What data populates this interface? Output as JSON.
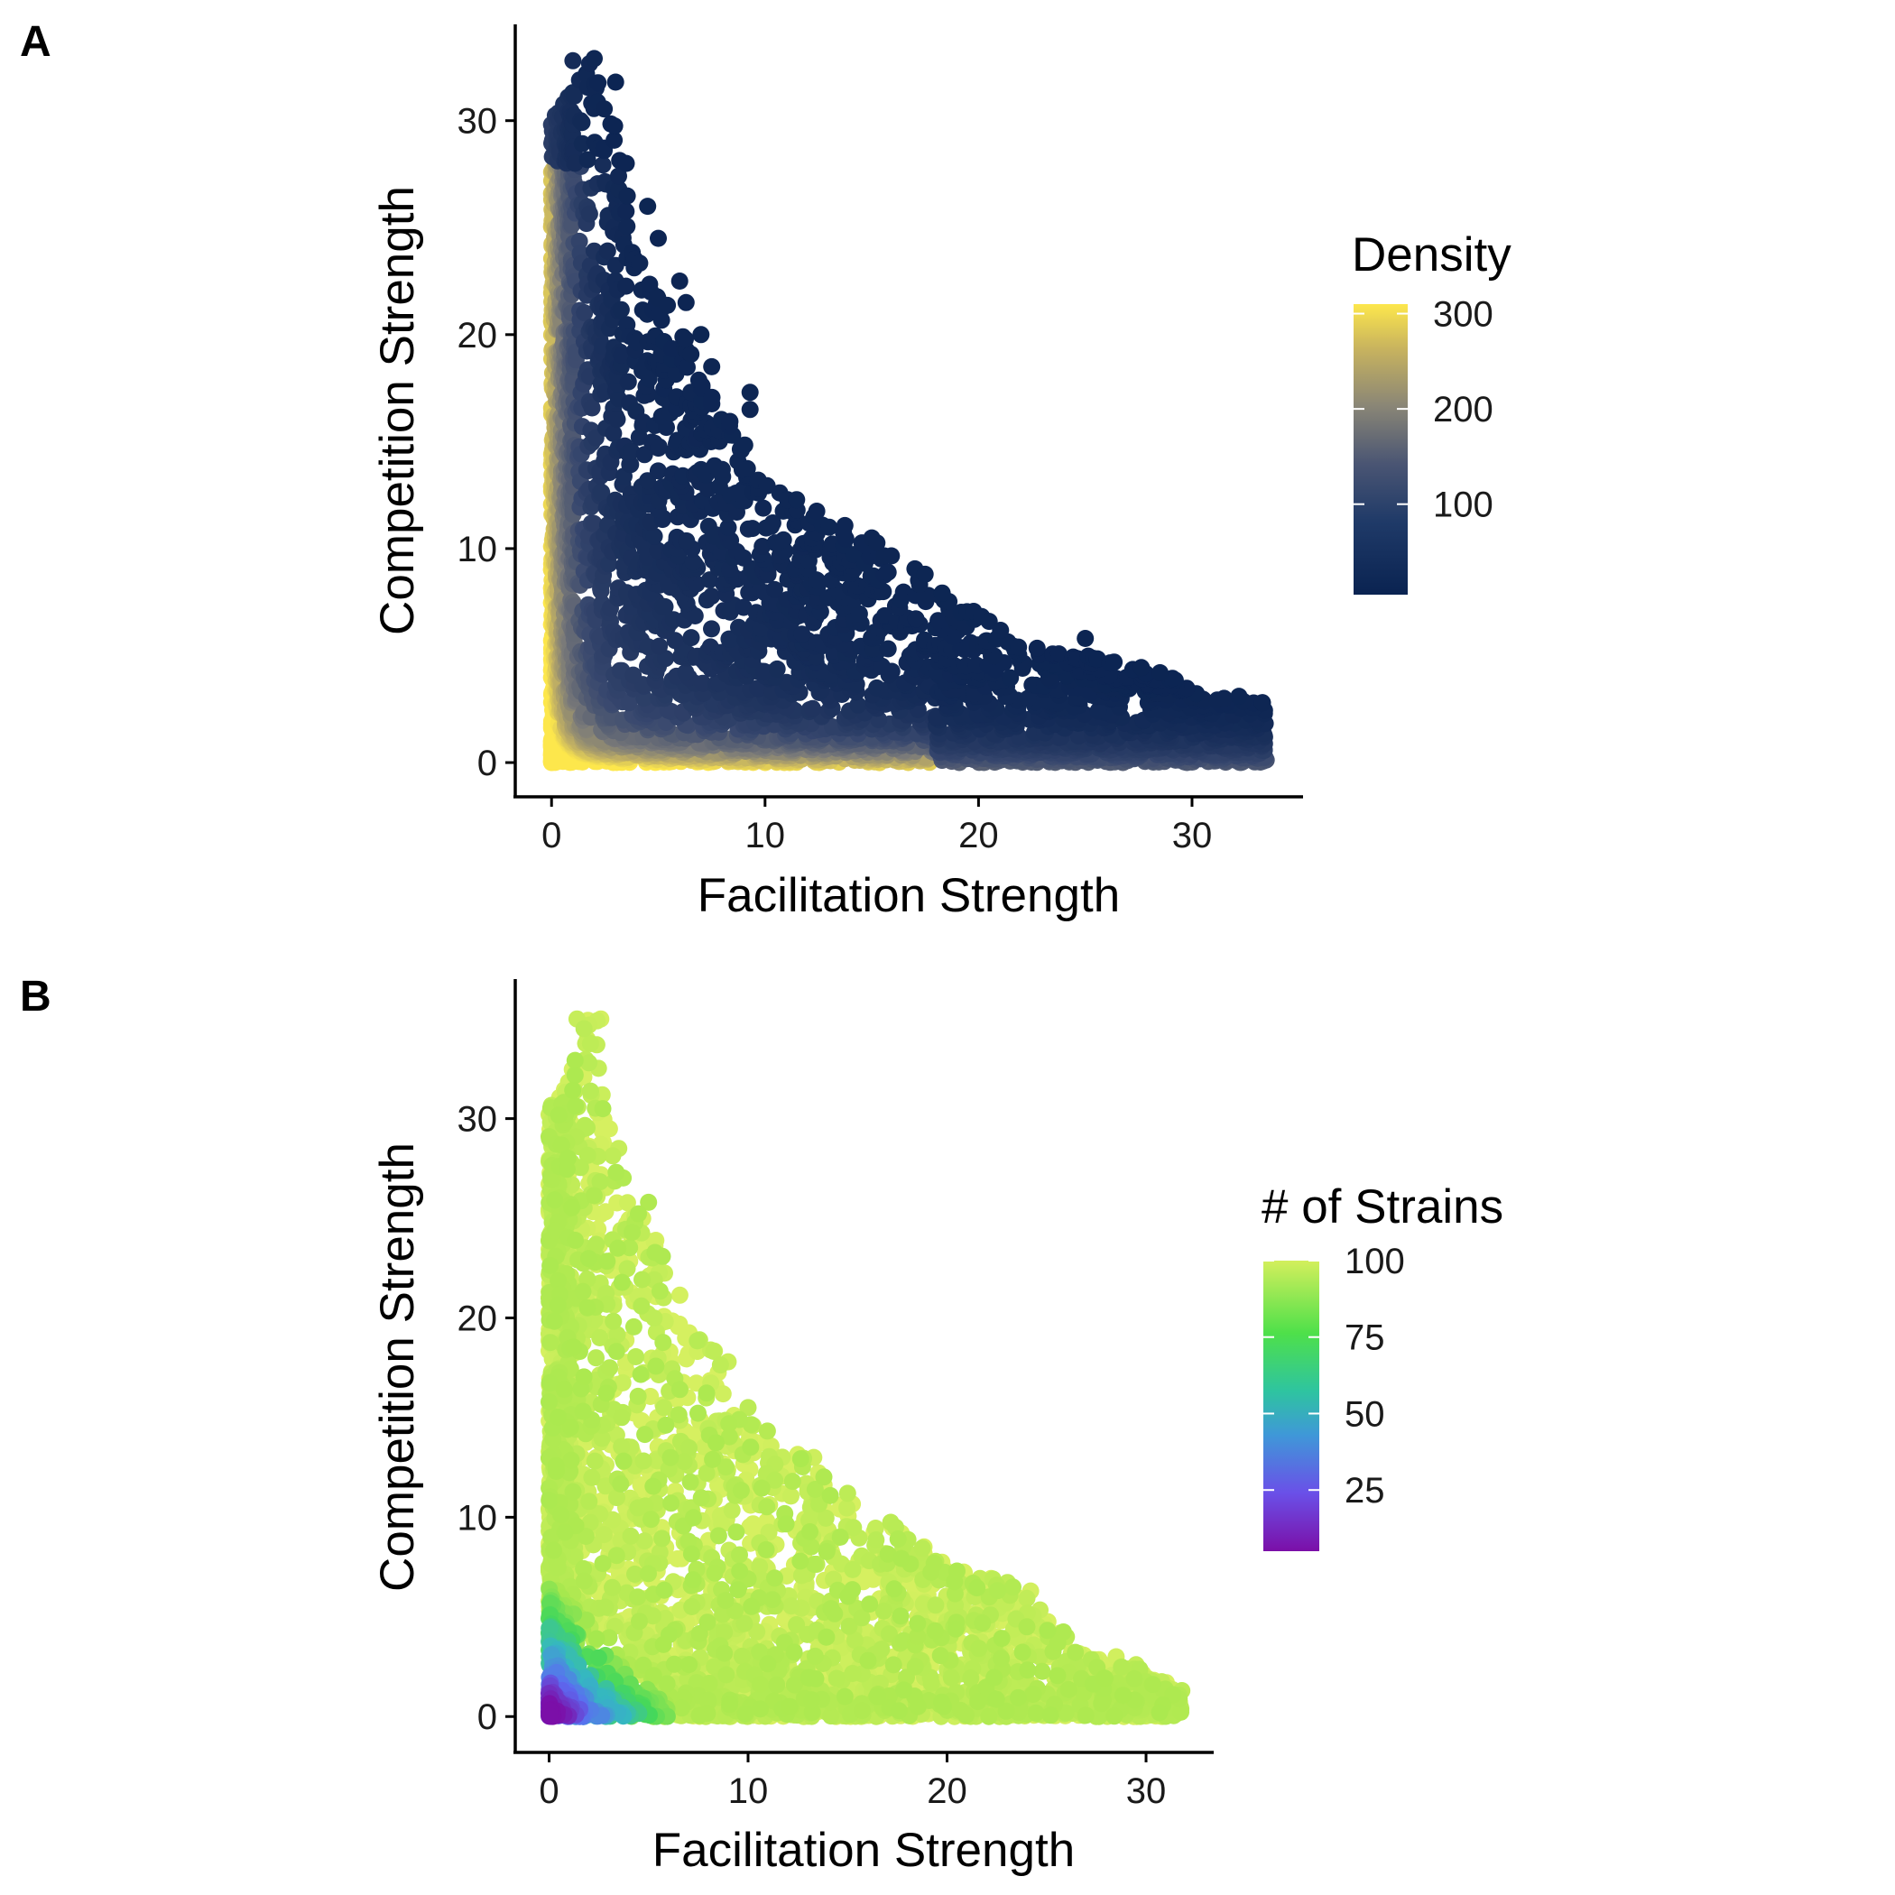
{
  "panels": [
    {
      "id": "A",
      "letter": "A"
    },
    {
      "id": "B",
      "letter": "B"
    }
  ],
  "chart_data": [
    {
      "type": "scatter",
      "panel": "A",
      "xlabel": "Facilitation Strength",
      "ylabel": "Competition Strength",
      "xlim": [
        -1.7,
        35.2
      ],
      "ylim": [
        -1.6,
        34.5
      ],
      "x_ticks": [
        0,
        10,
        20,
        30
      ],
      "y_ticks": [
        0,
        10,
        20,
        30
      ],
      "grid": false,
      "legend": {
        "title": "Density",
        "placement": "right",
        "range": [
          5,
          310
        ],
        "ticks": [
          100,
          200,
          300
        ],
        "colors": [
          "#0a2351",
          "#37476e",
          "#7a7a79",
          "#bfae64",
          "#fde74c"
        ]
      },
      "point_cloud": {
        "description_values": {
          "x_range": [
            0,
            33.5
          ],
          "y_range": [
            0,
            33
          ],
          "boundary_upper": [
            [
              0,
              30
            ],
            [
              1,
              31.5
            ],
            [
              2,
              33
            ],
            [
              3,
              30
            ],
            [
              4,
              24
            ],
            [
              5,
              23
            ],
            [
              6,
              21
            ],
            [
              7,
              18
            ],
            [
              8,
              16.5
            ],
            [
              9,
              15
            ],
            [
              10,
              13.5
            ],
            [
              12,
              12
            ],
            [
              15,
              10.5
            ],
            [
              18,
              8.5
            ],
            [
              20,
              7
            ],
            [
              22,
              5.5
            ],
            [
              25,
              5
            ],
            [
              28,
              4.5
            ],
            [
              31,
              3
            ],
            [
              33.5,
              2.8
            ]
          ],
          "highlighted_points": [
            [
              1,
              32.8
            ],
            [
              2,
              32.9
            ],
            [
              2,
              31.7
            ],
            [
              3,
              31.8
            ],
            [
              3.5,
              28
            ],
            [
              4.5,
              26
            ],
            [
              5,
              24.5
            ],
            [
              6,
              22.5
            ],
            [
              6.3,
              21.5
            ],
            [
              7,
              20
            ],
            [
              7.5,
              18.5
            ],
            [
              9.3,
              17.3
            ],
            [
              9.3,
              16.5
            ],
            [
              11.5,
              11.8
            ],
            [
              13,
              11
            ],
            [
              15,
              10.5
            ],
            [
              17.5,
              8.8
            ],
            [
              18.2,
              7.8
            ],
            [
              20.5,
              6.6
            ],
            [
              23.5,
              5
            ],
            [
              25,
              5.8
            ],
            [
              27,
              4
            ],
            [
              28.5,
              4.2
            ],
            [
              31.5,
              3
            ],
            [
              32.2,
              3.1
            ],
            [
              33.3,
              2.8
            ],
            [
              29.5,
              0.8
            ],
            [
              31.5,
              0.2
            ]
          ]
        }
      }
    },
    {
      "type": "scatter",
      "panel": "B",
      "xlabel": "Facilitation Strength",
      "ylabel": "Competition Strength",
      "xlim": [
        -1.7,
        33.4
      ],
      "ylim": [
        -1.8,
        37
      ],
      "x_ticks": [
        0,
        10,
        20,
        30
      ],
      "y_ticks": [
        0,
        10,
        20,
        30
      ],
      "grid": false,
      "legend": {
        "title": "# of Strains",
        "placement": "right",
        "range": [
          5,
          100
        ],
        "ticks": [
          25,
          50,
          75,
          100
        ],
        "colors": [
          "#7b0fa8",
          "#5b6cf2",
          "#35b7c2",
          "#45d85a",
          "#a8e84e",
          "#d6f060"
        ]
      },
      "point_cloud": {
        "description_values": {
          "x_range": [
            0,
            31.8
          ],
          "y_range": [
            0,
            35
          ],
          "boundary_upper": [
            [
              0,
              30.5
            ],
            [
              1,
              32
            ],
            [
              1.5,
              35
            ],
            [
              2.5,
              35
            ],
            [
              3,
              30
            ],
            [
              4,
              26
            ],
            [
              5.5,
              24
            ],
            [
              7,
              20
            ],
            [
              9,
              17.5
            ],
            [
              10,
              15
            ],
            [
              13,
              13
            ],
            [
              15,
              11
            ],
            [
              18,
              9.5
            ],
            [
              20,
              7.5
            ],
            [
              24,
              6.5
            ],
            [
              27,
              3
            ],
            [
              29.5,
              2.5
            ],
            [
              31.8,
              1.3
            ]
          ],
          "highlighted_points": [
            [
              1.4,
              35
            ],
            [
              2.6,
              35
            ],
            [
              2,
              32.8
            ],
            [
              1,
              31.5
            ],
            [
              2.7,
              30.5
            ],
            [
              3.5,
              28.5
            ],
            [
              5,
              25.8
            ],
            [
              5.6,
              23
            ],
            [
              7,
              18.2
            ],
            [
              9,
              17.8
            ],
            [
              10,
              15.5
            ],
            [
              13.3,
              13
            ],
            [
              15,
              11.2
            ],
            [
              17.7,
              9.2
            ],
            [
              20.5,
              7.3
            ],
            [
              24.2,
              6.3
            ],
            [
              26,
              4
            ],
            [
              28.5,
              3
            ],
            [
              29.5,
              2.6
            ],
            [
              31.8,
              1.3
            ]
          ]
        }
      }
    }
  ]
}
